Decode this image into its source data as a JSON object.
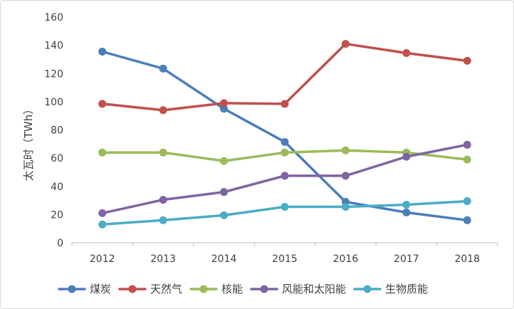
{
  "chart_data": {
    "type": "line",
    "title": "",
    "xlabel": "",
    "ylabel": "太瓦时（TWh）",
    "ylim": [
      0,
      160
    ],
    "yticks": [
      0,
      20,
      40,
      60,
      80,
      100,
      120,
      140,
      160
    ],
    "grid": false,
    "legend_position": "bottom",
    "categories": [
      "2012",
      "2013",
      "2014",
      "2015",
      "2016",
      "2017",
      "2018"
    ],
    "series": [
      {
        "name": "煤炭",
        "color": "#4a7ebb",
        "values": [
          135.5,
          123.5,
          95,
          71.5,
          29,
          21.5,
          16
        ]
      },
      {
        "name": "天然气",
        "color": "#c0504d",
        "values": [
          98.5,
          94,
          99,
          98.5,
          141,
          134.5,
          129
        ]
      },
      {
        "name": "核能",
        "color": "#9bbb59",
        "values": [
          64,
          64,
          58,
          64,
          65.5,
          64,
          59
        ]
      },
      {
        "name": "风能和太阳能",
        "color": "#8064a2",
        "values": [
          21,
          30.5,
          36,
          47.5,
          47.5,
          61,
          69.5
        ]
      },
      {
        "name": "生物质能",
        "color": "#4bacc6",
        "values": [
          13,
          16,
          19.5,
          25.5,
          25.5,
          27,
          29.5
        ]
      }
    ]
  }
}
